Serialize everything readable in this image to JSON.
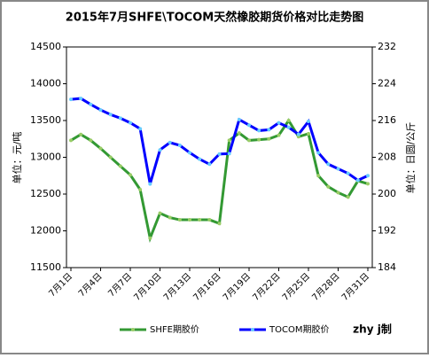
{
  "chart_data": {
    "type": "line",
    "title": "2015年7月SHFE\\TOCOM天然橡胶期货价格对比走势图",
    "y_label": "单位：元/吨",
    "y2_label": "单位：日圆/公斤",
    "credit": "zhy j制",
    "categories": [
      "7月1日",
      null,
      null,
      "7月4日",
      null,
      null,
      "7月7日",
      null,
      null,
      "7月10日",
      null,
      null,
      "7月13日",
      null,
      null,
      "7月16日",
      null,
      null,
      "7月19日",
      null,
      null,
      "7月22日",
      null,
      null,
      "7月25日",
      null,
      null,
      "7月28日",
      null,
      null,
      "7月31日"
    ],
    "ylim": [
      11500,
      14500
    ],
    "yticks": [
      11500,
      12000,
      12500,
      13000,
      13500,
      14000,
      14500
    ],
    "y2lim": [
      184,
      232
    ],
    "y2ticks": [
      184,
      192,
      200,
      208,
      216,
      224,
      232
    ],
    "legend": "bottom",
    "series": [
      {
        "name": "SHFE期胶价",
        "color": "#339933",
        "axis": "y",
        "values": [
          13230,
          13310,
          13230,
          13120,
          13000,
          12880,
          12760,
          12560,
          11900,
          12240,
          12180,
          12150,
          12150,
          12150,
          12150,
          12100,
          13230,
          13330,
          13230,
          13240,
          13250,
          13300,
          13500,
          13280,
          13320,
          12750,
          12600,
          12520,
          12460,
          12680,
          12640
        ]
      },
      {
        "name": "TOCOM期胶价",
        "color": "#0000ff",
        "axis": "y2",
        "values": [
          220.6,
          220.8,
          219.5,
          218.3,
          217.3,
          216.5,
          215.5,
          214.2,
          202.2,
          209.6,
          211.2,
          210.6,
          209,
          207.6,
          206.5,
          208.7,
          208.8,
          216.2,
          215,
          213.8,
          214,
          215.5,
          214.5,
          213,
          215.8,
          209,
          206.5,
          205.5,
          204.5,
          203,
          204
        ]
      }
    ]
  }
}
